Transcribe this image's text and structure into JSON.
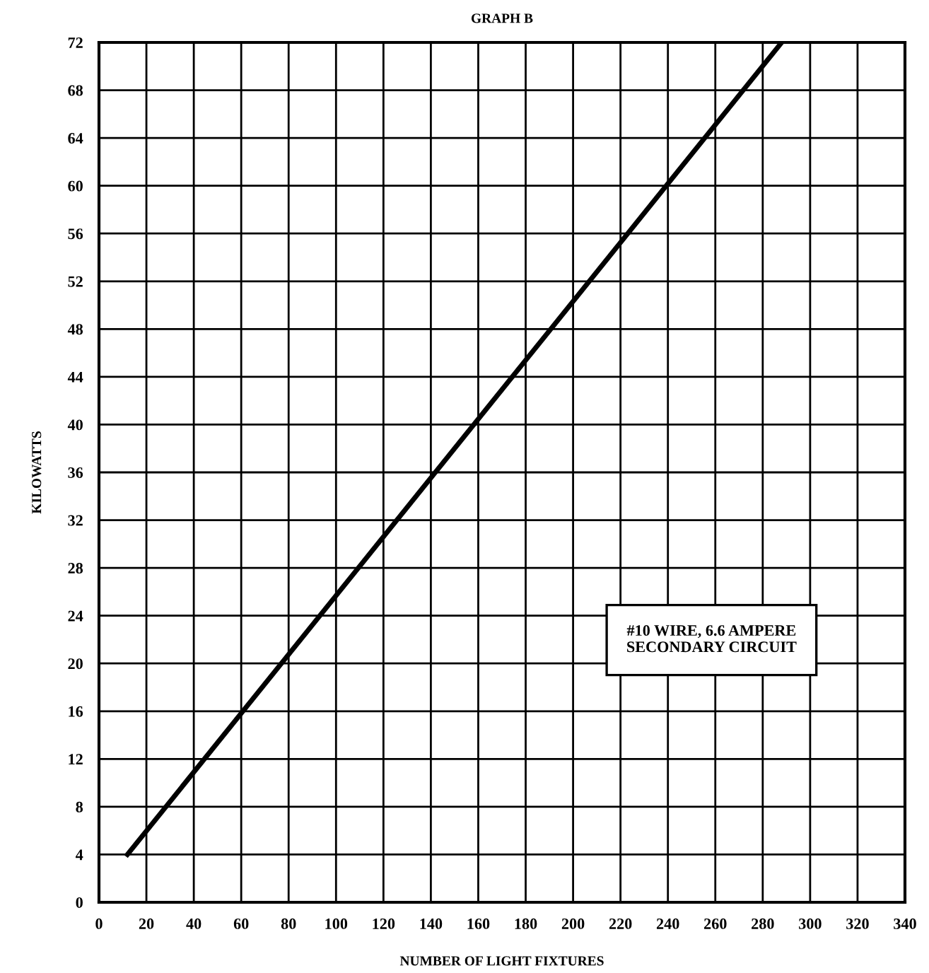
{
  "chart_data": {
    "type": "line",
    "title": "GRAPH B",
    "xlabel": "NUMBER OF LIGHT FIXTURES",
    "ylabel": "KILOWATTS",
    "x": [
      12,
      288
    ],
    "series": [
      {
        "color": "#000000",
        "values": [
          4,
          72
        ]
      }
    ],
    "annotations": [
      "#10 WIRE, 6.6 AMPERE\nSECONDARY CIRCUIT"
    ],
    "xlim": [
      0,
      340
    ],
    "xticks": [
      0,
      20,
      40,
      60,
      80,
      100,
      120,
      140,
      160,
      180,
      200,
      220,
      240,
      260,
      280,
      300,
      320,
      340
    ],
    "ylim": [
      0,
      72
    ],
    "yticks": [
      0,
      4,
      8,
      12,
      16,
      20,
      24,
      28,
      32,
      36,
      40,
      44,
      48,
      52,
      56,
      60,
      64,
      68,
      72
    ],
    "grid": true,
    "marker": "none",
    "line_style": "solid"
  }
}
